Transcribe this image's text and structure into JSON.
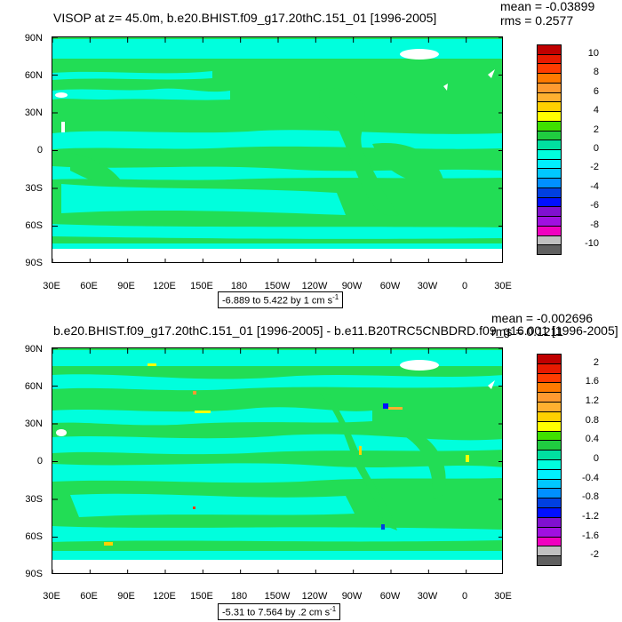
{
  "chart_data": [
    {
      "type": "heatmap",
      "title": "VISOP at z=  45.0m, b.e20.BHIST.f09_g17.20thC.151_01 [1996-2005]",
      "stats": {
        "mean": "mean = -0.03899",
        "rms": "rms = 0.2577"
      },
      "range_label": "-6.889 to 5.422 by 1 cm s",
      "range_unit_exp": "-1",
      "x_ticks": [
        "30E",
        "60E",
        "90E",
        "120E",
        "150E",
        "180",
        "150W",
        "120W",
        "90W",
        "60W",
        "30W",
        "0",
        "30E"
      ],
      "y_ticks": [
        "90N",
        "60N",
        "30N",
        "0",
        "30S",
        "60S",
        "90S"
      ],
      "colorbar": {
        "labels": [
          "10",
          "8",
          "6",
          "4",
          "2",
          "0",
          "-2",
          "-4",
          "-6",
          "-8",
          "-10"
        ],
        "colors": [
          "#c00000",
          "#e81a00",
          "#ff3c00",
          "#ff7a00",
          "#ff9a30",
          "#ffb030",
          "#ffd000",
          "#ffff00",
          "#40e000",
          "#20cc40",
          "#00e0a0",
          "#00ffdd",
          "#00f0ff",
          "#00c8ff",
          "#0090ff",
          "#0040e0",
          "#0010ff",
          "#8010d0",
          "#a010e0",
          "#f000c0",
          "#c0c0c0",
          "#606060"
        ]
      }
    },
    {
      "type": "heatmap",
      "title": "b.e20.BHIST.f09_g17.20thC.151_01 [1996-2005] - b.e11.B20TRC5CNBDRD.f09_g16.001 [1996-2005]",
      "stats": {
        "mean": "mean = -0.002696",
        "rms": "rms = 0.1211"
      },
      "range_label": "-5.31 to 7.564 by .2 cm s",
      "range_unit_exp": "-1",
      "x_ticks": [
        "30E",
        "60E",
        "90E",
        "120E",
        "150E",
        "180",
        "150W",
        "120W",
        "90W",
        "60W",
        "30W",
        "0",
        "30E"
      ],
      "y_ticks": [
        "90N",
        "60N",
        "30N",
        "0",
        "30S",
        "60S",
        "90S"
      ],
      "colorbar": {
        "labels": [
          "2",
          "1.6",
          "1.2",
          "0.8",
          "0.4",
          "0",
          "-0.4",
          "-0.8",
          "-1.2",
          "-1.6",
          "-2"
        ],
        "colors": [
          "#c00000",
          "#e81a00",
          "#ff3c00",
          "#ff7a00",
          "#ff9a30",
          "#ffb030",
          "#ffd000",
          "#ffff00",
          "#40e000",
          "#20cc40",
          "#00e0a0",
          "#00ffdd",
          "#00f0ff",
          "#00c8ff",
          "#0090ff",
          "#0040e0",
          "#0010ff",
          "#8010d0",
          "#a010e0",
          "#f000c0",
          "#c0c0c0",
          "#606060"
        ]
      }
    }
  ]
}
